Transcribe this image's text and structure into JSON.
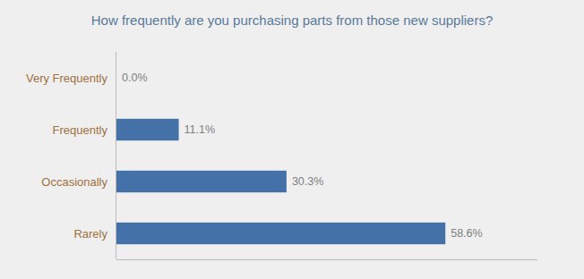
{
  "chart_data": {
    "type": "bar",
    "orientation": "horizontal",
    "title": "How frequently are you purchasing parts from those new suppliers?",
    "categories": [
      "Rarely",
      "Occasionally",
      "Frequently",
      "Very Frequently"
    ],
    "values": [
      58.6,
      30.3,
      11.1,
      0.0
    ],
    "value_labels": [
      "58.6%",
      "30.3%",
      "11.1%",
      "0.0%"
    ],
    "data_labels": true,
    "color": "#4472a8",
    "xlim": [
      0,
      75
    ],
    "xticks": [],
    "grid": false,
    "tick_labels": "y"
  }
}
